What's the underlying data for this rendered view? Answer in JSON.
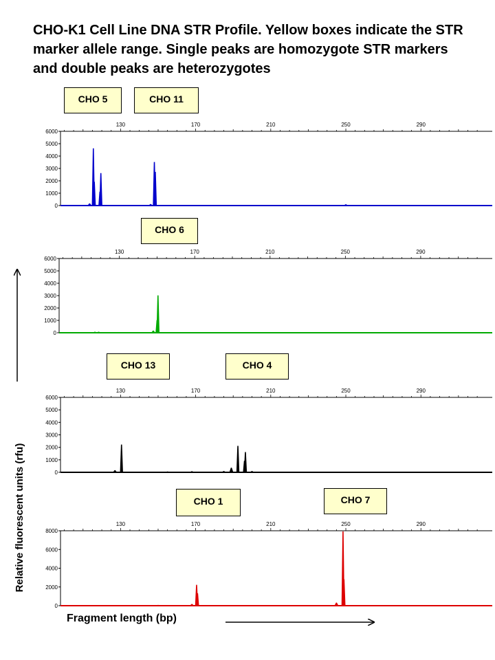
{
  "title": "CHO-K1 Cell Line DNA STR Profile. Yellow boxes indicate the STR marker allele range. Single peaks are homozygote STR markers and double peaks are heterozygotes",
  "ylabel": "Relative fluorescent units (rfu)",
  "xlabel": "Fragment length (bp)",
  "chart_data": [
    {
      "type": "line",
      "color": "#0000cc",
      "markers": [
        "CHO 5",
        "CHO 11"
      ],
      "xticks": [
        130,
        170,
        210,
        250,
        290
      ],
      "yticks": [
        0,
        1000,
        2000,
        3000,
        4000,
        5000,
        6000
      ],
      "xlim": [
        98,
        328
      ],
      "ylim": [
        0,
        6000
      ],
      "peaks": [
        {
          "x": 113.5,
          "y": 150
        },
        {
          "x": 115.5,
          "y": 4600
        },
        {
          "x": 116.0,
          "y": 1900
        },
        {
          "x": 119.5,
          "y": 2600
        },
        {
          "x": 119.0,
          "y": 1100
        },
        {
          "x": 146.0,
          "y": 100
        },
        {
          "x": 148.0,
          "y": 3500
        },
        {
          "x": 148.5,
          "y": 2700
        },
        {
          "x": 250.0,
          "y": 80
        }
      ]
    },
    {
      "type": "line",
      "color": "#00aa00",
      "markers": [
        "CHO 6"
      ],
      "xticks": [
        130,
        170,
        210,
        250,
        290
      ],
      "yticks": [
        0,
        1000,
        2000,
        3000,
        4000,
        5000,
        6000
      ],
      "xlim": [
        98,
        328
      ],
      "ylim": [
        0,
        6000
      ],
      "peaks": [
        {
          "x": 117.0,
          "y": 60
        },
        {
          "x": 119.0,
          "y": 60
        },
        {
          "x": 148.0,
          "y": 150
        },
        {
          "x": 150.5,
          "y": 3000
        },
        {
          "x": 150.0,
          "y": 1000
        }
      ]
    },
    {
      "type": "line",
      "color": "#000000",
      "markers": [
        "CHO 13",
        "CHO 4"
      ],
      "xticks": [
        130,
        170,
        210,
        250,
        290
      ],
      "yticks": [
        0,
        1000,
        2000,
        3000,
        4000,
        5000,
        6000
      ],
      "xlim": [
        98,
        328
      ],
      "ylim": [
        0,
        6000
      ],
      "peaks": [
        {
          "x": 127.0,
          "y": 150
        },
        {
          "x": 130.5,
          "y": 2200
        },
        {
          "x": 155.0,
          "y": 50
        },
        {
          "x": 168.0,
          "y": 70
        },
        {
          "x": 185.0,
          "y": 80
        },
        {
          "x": 189.0,
          "y": 350
        },
        {
          "x": 192.5,
          "y": 2100
        },
        {
          "x": 196.5,
          "y": 1600
        },
        {
          "x": 196.0,
          "y": 900
        },
        {
          "x": 200.0,
          "y": 80
        },
        {
          "x": 252.0,
          "y": 30
        }
      ]
    },
    {
      "type": "line",
      "color": "#dd0000",
      "markers": [
        "CHO 1",
        "CHO 7"
      ],
      "xticks": [
        130,
        170,
        210,
        250,
        290
      ],
      "yticks": [
        0,
        2000,
        4000,
        6000,
        8000
      ],
      "xlim": [
        98,
        328
      ],
      "ylim": [
        0,
        8000
      ],
      "peaks": [
        {
          "x": 150.0,
          "y": 50
        },
        {
          "x": 168.0,
          "y": 150
        },
        {
          "x": 170.5,
          "y": 2200
        },
        {
          "x": 171.0,
          "y": 1300
        },
        {
          "x": 245.0,
          "y": 300
        },
        {
          "x": 248.5,
          "y": 7900
        },
        {
          "x": 249.0,
          "y": 2800
        }
      ]
    }
  ]
}
